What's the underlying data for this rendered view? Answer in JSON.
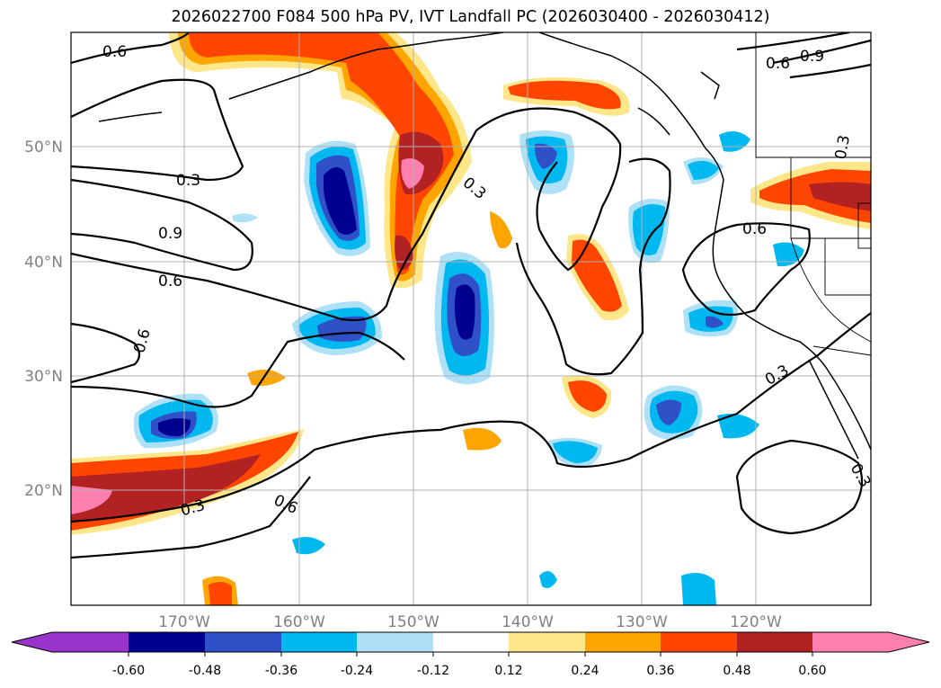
{
  "title": "2026022700 F084 500 hPa PV, IVT Landfall PC (2026030400 - 2026030412)",
  "map": {
    "lat_ticks": [
      "50°N",
      "40°N",
      "30°N",
      "20°N"
    ],
    "lon_ticks": [
      "170°W",
      "160°W",
      "150°W",
      "140°W",
      "130°W",
      "120°W"
    ],
    "grid_color": "#b0b0b0"
  },
  "contours": {
    "labels": [
      {
        "text": "0.6",
        "id": "c-06-nw"
      },
      {
        "text": "0.9",
        "id": "c-09-ne"
      },
      {
        "text": "0.6",
        "id": "c-06-ne"
      },
      {
        "text": "0.3",
        "id": "c-03-ne"
      },
      {
        "text": "0.3",
        "id": "c-03-w"
      },
      {
        "text": "0.9",
        "id": "c-09-w"
      },
      {
        "text": "0.6",
        "id": "c-06-w"
      },
      {
        "text": "0.6",
        "id": "c-06-sw"
      },
      {
        "text": "0.3",
        "id": "c-03-c"
      },
      {
        "text": "0.6",
        "id": "c-06-coast"
      },
      {
        "text": "0.3",
        "id": "c-03-se"
      },
      {
        "text": "0.3",
        "id": "c-03-e"
      },
      {
        "text": "0.3",
        "id": "c-03-s"
      },
      {
        "text": "0.6",
        "id": "c-06-s"
      }
    ]
  },
  "colorbar": {
    "levels": [
      "-0.60",
      "-0.48",
      "-0.36",
      "-0.24",
      "-0.12",
      "0.12",
      "0.24",
      "0.36",
      "0.48",
      "0.60"
    ],
    "colors": {
      "under": "#9933cc",
      "n60": "#000090",
      "n48": "#3050c8",
      "n36": "#00b8f0",
      "n24": "#aee0f8",
      "zero": "#ffffff",
      "p12": "#fde78a",
      "p24": "#ffa500",
      "p36": "#ff4500",
      "p48": "#b22222",
      "over": "#ff80b0"
    }
  }
}
